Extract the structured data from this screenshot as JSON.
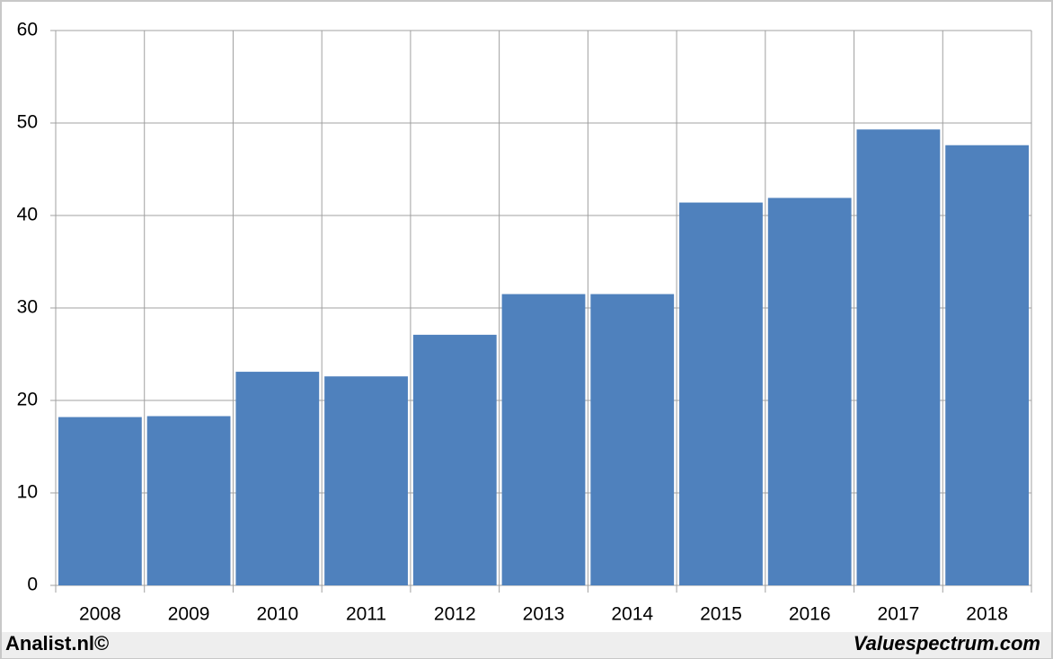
{
  "chart_data": {
    "type": "bar",
    "categories": [
      "2008",
      "2009",
      "2010",
      "2011",
      "2012",
      "2013",
      "2014",
      "2015",
      "2016",
      "2017",
      "2018"
    ],
    "values": [
      18.2,
      18.3,
      23.1,
      22.6,
      27.1,
      31.5,
      31.5,
      41.4,
      41.9,
      49.3,
      47.6
    ],
    "color": "#4f81bd",
    "ylim": [
      0,
      60
    ],
    "yticks": [
      0,
      10,
      20,
      30,
      40,
      50,
      60
    ],
    "grid": true,
    "annotations": [
      "Analist.nl©",
      "Valuespectrum.com"
    ]
  }
}
